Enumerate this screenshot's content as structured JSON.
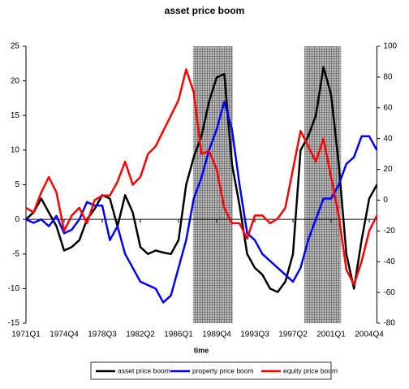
{
  "chart_data": {
    "type": "line",
    "title": "asset price boom",
    "x_label": "time",
    "categories": [
      "1971Q1",
      null,
      null,
      null,
      null,
      "1974Q4",
      null,
      null,
      null,
      null,
      "1978Q3",
      null,
      null,
      null,
      null,
      "1982Q2",
      null,
      null,
      null,
      null,
      "1986Q1",
      null,
      null,
      null,
      null,
      "1989Q4",
      null,
      null,
      null,
      null,
      "1993Q3",
      null,
      null,
      null,
      null,
      "1997Q2",
      null,
      null,
      null,
      null,
      "2001Q1",
      null,
      null,
      null,
      null,
      "2004Q4",
      null
    ],
    "series": [
      {
        "name": "asset price boom",
        "color": "#000000",
        "axis": "y",
        "values": [
          0,
          1,
          3,
          1,
          -1,
          -4.5,
          -4,
          -3,
          0,
          1.5,
          3.5,
          3,
          -1,
          3.5,
          1,
          -4,
          -5,
          -4.5,
          -4.8,
          -5,
          -3,
          5,
          9,
          12,
          17,
          20.5,
          21,
          8,
          2,
          -5,
          -7,
          -8,
          -10,
          -10.5,
          -9,
          -5,
          10,
          12,
          15,
          22,
          18,
          8,
          -5,
          -10,
          -3,
          3,
          5
        ]
      },
      {
        "name": "property price boom",
        "color": "#0000ff",
        "axis": "y",
        "values": [
          0,
          -0.5,
          0,
          -1,
          0.5,
          -2,
          -1.5,
          0,
          2.5,
          2,
          2,
          -3,
          -1,
          -5,
          -7,
          -9,
          -9.5,
          -10,
          -12,
          -11,
          -7,
          -3,
          3,
          6,
          10,
          13,
          17,
          13,
          5,
          -2,
          -3,
          -5,
          -6,
          -7,
          -8,
          -9,
          -7,
          -3,
          0,
          3,
          3,
          5,
          8,
          9,
          12,
          12,
          10
        ]
      },
      {
        "name": "equity price boom",
        "color": "#ff0000",
        "axis": "y2",
        "values": [
          -5,
          -8,
          5,
          15,
          5,
          -20,
          -10,
          -5,
          -15,
          0,
          3,
          3,
          12,
          25,
          10,
          15,
          30,
          35,
          45,
          55,
          65,
          85,
          70,
          30,
          32,
          20,
          -5,
          -15,
          -15,
          -25,
          -10,
          -10,
          -15,
          -12,
          -5,
          20,
          45,
          35,
          25,
          40,
          15,
          -10,
          -45,
          -55,
          -40,
          -20,
          -10
        ]
      }
    ],
    "shaded": [
      {
        "from": 21.9,
        "to": 27.1
      },
      {
        "from": 36.5,
        "to": 41.3
      }
    ],
    "ylim": [
      -15,
      25
    ],
    "yticks": [
      -15,
      -10,
      -5,
      0,
      5,
      10,
      15,
      20,
      25
    ],
    "y2lim": [
      -80,
      100
    ],
    "y2ticks": [
      -80,
      -60,
      -40,
      -20,
      0,
      20,
      40,
      60,
      80,
      100
    ],
    "grid": false
  }
}
